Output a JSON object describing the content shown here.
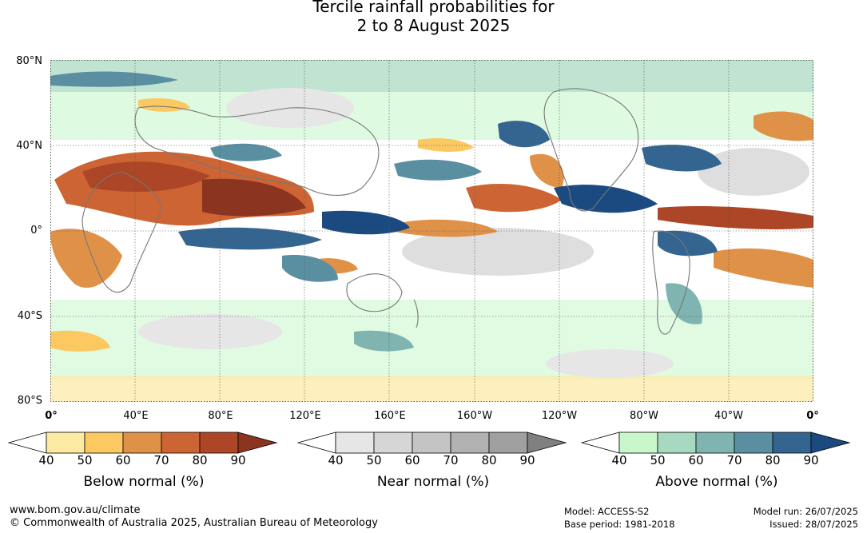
{
  "title": {
    "line1": "Tercile rainfall probabilities for",
    "line2": "2 to 8 August 2025"
  },
  "map": {
    "lat_labels": [
      "80°N",
      "40°N",
      "0°",
      "40°S",
      "80°S"
    ],
    "lon_labels": [
      "0°",
      "40°E",
      "80°E",
      "120°E",
      "160°E",
      "160°W",
      "120°W",
      "80°W",
      "40°W",
      "0°"
    ]
  },
  "legends": [
    {
      "title": "Below normal (%)",
      "ticks": [
        "40",
        "50",
        "60",
        "70",
        "80",
        "90"
      ],
      "colors": [
        "#ffffff",
        "#fdeaa2",
        "#fbc862",
        "#e09148",
        "#cd6434",
        "#ad4626",
        "#8b3420"
      ]
    },
    {
      "title": "Near normal (%)",
      "ticks": [
        "40",
        "50",
        "60",
        "70",
        "80",
        "90"
      ],
      "colors": [
        "#ffffff",
        "#e6e6e6",
        "#d6d6d6",
        "#c4c4c4",
        "#b1b1b1",
        "#a0a0a0",
        "#808080"
      ]
    },
    {
      "title": "Above normal (%)",
      "ticks": [
        "40",
        "50",
        "60",
        "70",
        "80",
        "90"
      ],
      "colors": [
        "#ffffff",
        "#c8f7cc",
        "#a6d9bf",
        "#7fb4b0",
        "#5a8fa1",
        "#346591",
        "#1b4a80"
      ]
    }
  ],
  "footer": {
    "website": "www.bom.gov.au/climate",
    "copyright": "© Commonwealth of Australia 2025, Australian Bureau of Meteorology",
    "model": "Model: ACCESS-S2",
    "base_period": "Base period: 1981-2018",
    "model_run": "Model run: 26/07/2025",
    "issued": "Issued: 28/07/2025"
  }
}
